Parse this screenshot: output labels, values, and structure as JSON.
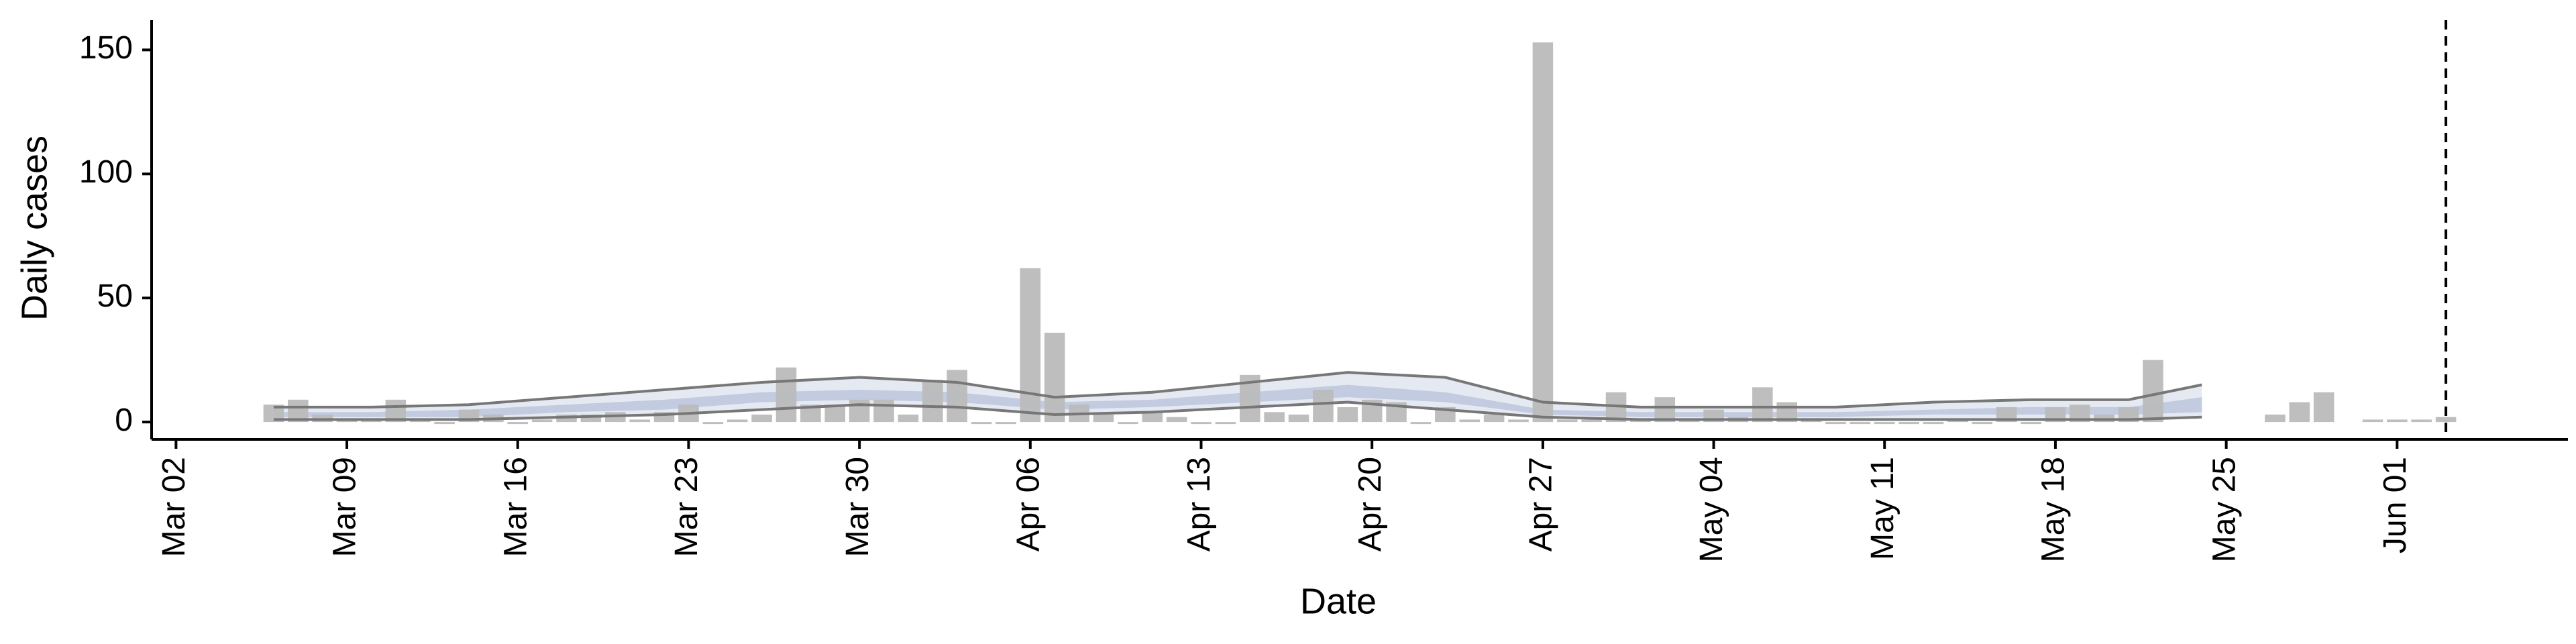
{
  "chart_data": {
    "type": "bar",
    "x_label": "Date",
    "y_label": "Daily cases",
    "color": "#bbbbbb",
    "categories": [
      "Mar 01",
      "Mar 02",
      "Mar 03",
      "Mar 04",
      "Mar 05",
      "Mar 06",
      "Mar 07",
      "Mar 08",
      "Mar 09",
      "Mar 10",
      "Mar 11",
      "Mar 12",
      "Mar 13",
      "Mar 14",
      "Mar 15",
      "Mar 16",
      "Mar 17",
      "Mar 18",
      "Mar 19",
      "Mar 20",
      "Mar 21",
      "Mar 22",
      "Mar 23",
      "Mar 24",
      "Mar 25",
      "Mar 26",
      "Mar 27",
      "Mar 28",
      "Mar 29",
      "Mar 30",
      "Mar 31",
      "Apr 01",
      "Apr 02",
      "Apr 03",
      "Apr 04",
      "Apr 05",
      "Apr 06",
      "Apr 07",
      "Apr 08",
      "Apr 09",
      "Apr 10",
      "Apr 11",
      "Apr 12",
      "Apr 13",
      "Apr 14",
      "Apr 15",
      "Apr 16",
      "Apr 17",
      "Apr 18",
      "Apr 19",
      "Apr 20",
      "Apr 21",
      "Apr 22",
      "Apr 23",
      "Apr 24",
      "Apr 25",
      "Apr 26",
      "Apr 27",
      "Apr 28",
      "Apr 29",
      "Apr 30",
      "May 01",
      "May 02",
      "May 03",
      "May 04",
      "May 05",
      "May 06",
      "May 07",
      "May 08",
      "May 09",
      "May 10",
      "May 11",
      "May 12",
      "May 13",
      "May 14",
      "May 15",
      "May 16",
      "May 17",
      "May 18",
      "May 19",
      "May 20",
      "May 21",
      "May 22",
      "May 23",
      "May 24",
      "May 25",
      "May 26",
      "May 27",
      "May 28",
      "May 29",
      "May 30",
      "May 31",
      "Jun 01",
      "Jun 02",
      "Jun 03",
      "Jun 04",
      "Jun 05",
      "Jun 06",
      "Jun 07"
    ],
    "values": [
      null,
      null,
      null,
      null,
      null,
      7,
      9,
      3,
      1,
      1,
      9,
      1,
      0,
      5,
      3,
      0,
      1,
      3,
      3,
      4,
      1,
      4,
      7,
      0,
      1,
      3,
      22,
      7,
      7,
      9,
      9,
      3,
      17,
      21,
      0,
      0,
      62,
      36,
      7,
      3,
      0,
      4,
      2,
      0,
      0,
      19,
      4,
      3,
      13,
      6,
      9,
      8,
      0,
      6,
      1,
      3,
      1,
      153,
      1,
      1,
      12,
      1,
      10,
      1,
      5,
      2,
      14,
      8,
      1,
      0,
      0,
      0,
      0,
      0,
      1,
      0,
      6,
      0,
      6,
      7,
      3,
      6,
      25,
      null,
      null,
      null,
      null,
      3,
      8,
      12,
      null,
      1,
      1,
      1,
      2,
      null,
      null,
      null,
      null
    ],
    "intervals": {
      "x": [
        "Mar 06",
        "Mar 10",
        "Mar 14",
        "Mar 18",
        "Mar 22",
        "Mar 26",
        "Mar 30",
        "Apr 03",
        "Apr 07",
        "Apr 11",
        "Apr 15",
        "Apr 19",
        "Apr 23",
        "Apr 27",
        "May 01",
        "May 05",
        "May 09",
        "May 13",
        "May 17",
        "May 21",
        "May 24"
      ],
      "line_color": "#777777",
      "outer": {
        "color": "#e1e5ef",
        "upper": [
          6,
          6,
          7,
          10,
          13,
          16,
          18,
          16,
          10,
          12,
          16,
          20,
          18,
          8,
          6,
          6,
          6,
          8,
          9,
          9,
          15
        ],
        "lower": [
          1,
          1,
          1,
          2,
          3,
          5,
          7,
          6,
          3,
          4,
          6,
          8,
          5,
          2,
          1,
          1,
          1,
          1,
          1,
          1,
          2
        ]
      },
      "inner": {
        "color": "#bcc5dc",
        "upper": [
          4,
          4,
          5,
          7,
          9,
          12,
          13,
          12,
          8,
          9,
          12,
          15,
          12,
          5,
          4,
          4,
          4,
          5,
          6,
          6,
          10
        ],
        "lower": [
          2,
          2,
          2,
          4,
          5,
          8,
          9,
          8,
          5,
          6,
          8,
          10,
          8,
          3,
          2,
          2,
          2,
          3,
          3,
          3,
          4
        ]
      }
    },
    "vline": "Jun 03",
    "ylim": [
      -7,
      162
    ],
    "yticks": [
      0,
      50,
      100,
      150
    ],
    "xticks": [
      "Mar 02",
      "Mar 09",
      "Mar 16",
      "Mar 23",
      "Mar 30",
      "Apr 06",
      "Apr 13",
      "Apr 20",
      "Apr 27",
      "May 04",
      "May 11",
      "May 18",
      "May 25",
      "Jun 01"
    ],
    "grid": false
  }
}
